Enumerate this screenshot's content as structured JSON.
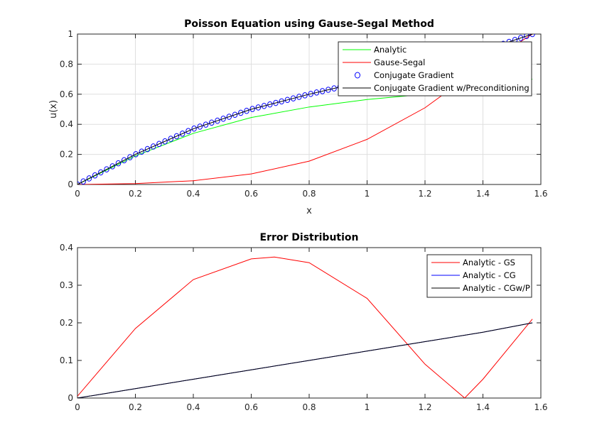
{
  "chart_data": [
    {
      "type": "line",
      "title": "Poisson Equation using Gause-Segal Method",
      "xlabel": "x",
      "ylabel": "u(x)",
      "xlim": [
        0,
        1.6
      ],
      "ylim": [
        0,
        1
      ],
      "xticks": [
        "0",
        "0.2",
        "0.4",
        "0.6",
        "0.8",
        "1",
        "1.2",
        "1.4",
        "1.6"
      ],
      "yticks": [
        "0",
        "0.2",
        "0.4",
        "0.6",
        "0.8",
        "1"
      ],
      "grid": true,
      "legend_position": "top-right",
      "series": [
        {
          "name": "Analytic",
          "color": "#00ff00",
          "style": "line",
          "x": [
            0,
            0.2,
            0.4,
            0.6,
            0.8,
            1.0,
            1.2,
            1.4,
            1.5708
          ],
          "y": [
            0,
            0.19,
            0.34,
            0.445,
            0.515,
            0.565,
            0.6,
            0.64,
            0.7
          ]
        },
        {
          "name": "Gause-Segal",
          "color": "#ff0000",
          "style": "line",
          "x": [
            0,
            0.2,
            0.4,
            0.6,
            0.8,
            1.0,
            1.2,
            1.4,
            1.5708
          ],
          "y": [
            0,
            0.006,
            0.025,
            0.07,
            0.155,
            0.3,
            0.51,
            0.79,
            1.0
          ]
        },
        {
          "name": "Conjugate Gradient",
          "color": "#0000ff",
          "style": "markers",
          "marker": "circle",
          "x": [
            0,
            0.2,
            0.4,
            0.6,
            0.8,
            1.0,
            1.2,
            1.4,
            1.5708
          ],
          "y": [
            0,
            0.2,
            0.37,
            0.5,
            0.6,
            0.69,
            0.77,
            0.89,
            1.0
          ]
        },
        {
          "name": "Conjugate Gradient w/Preconditioning",
          "color": "#000000",
          "style": "line",
          "x": [
            0,
            0.2,
            0.4,
            0.6,
            0.8,
            1.0,
            1.2,
            1.4,
            1.5708
          ],
          "y": [
            0,
            0.2,
            0.37,
            0.5,
            0.6,
            0.69,
            0.77,
            0.89,
            1.0
          ]
        }
      ]
    },
    {
      "type": "line",
      "title": "Error Distribution",
      "xlabel": "",
      "ylabel": "",
      "xlim": [
        0,
        1.6
      ],
      "ylim": [
        0,
        0.4
      ],
      "xticks": [
        "0",
        "0.2",
        "0.4",
        "0.6",
        "0.8",
        "1",
        "1.2",
        "1.4",
        "1.6"
      ],
      "yticks": [
        "0",
        "0.1",
        "0.2",
        "0.3",
        "0.4"
      ],
      "grid": false,
      "legend_position": "top-right",
      "series": [
        {
          "name": "Analytic - GS",
          "color": "#ff0000",
          "style": "line",
          "x": [
            0,
            0.2,
            0.4,
            0.6,
            0.68,
            0.8,
            1.0,
            1.2,
            1.337,
            1.4,
            1.5708
          ],
          "y": [
            0.005,
            0.185,
            0.315,
            0.37,
            0.375,
            0.36,
            0.265,
            0.09,
            0.0,
            0.05,
            0.21
          ]
        },
        {
          "name": "Analytic - CG",
          "color": "#0000ff",
          "style": "line",
          "x": [
            0,
            0.2,
            0.4,
            0.6,
            0.8,
            1.0,
            1.2,
            1.4,
            1.5708
          ],
          "y": [
            0,
            0.025,
            0.05,
            0.075,
            0.1,
            0.125,
            0.15,
            0.175,
            0.2
          ]
        },
        {
          "name": "Analytic - CGw/P",
          "color": "#000000",
          "style": "line",
          "x": [
            0,
            0.2,
            0.4,
            0.6,
            0.8,
            1.0,
            1.2,
            1.4,
            1.5708
          ],
          "y": [
            0,
            0.025,
            0.05,
            0.075,
            0.1,
            0.125,
            0.15,
            0.175,
            0.2
          ]
        }
      ]
    }
  ]
}
